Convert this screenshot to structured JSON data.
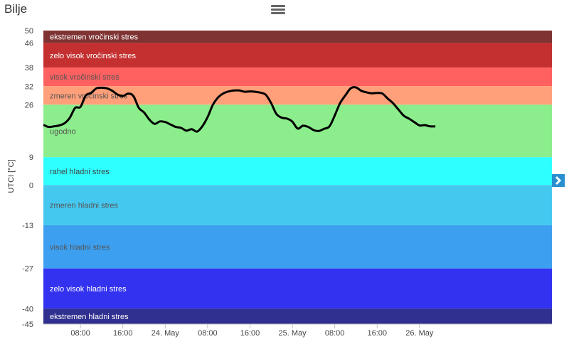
{
  "title": "Bilje",
  "chart_data": {
    "type": "line",
    "ylabel": "UTCI [°C]",
    "xlabel": "",
    "ylim": [
      -45,
      50
    ],
    "xlim": [
      0,
      96
    ],
    "y_ticks": [
      50,
      46,
      38,
      32,
      26,
      9,
      0,
      -13,
      -27,
      -40,
      -45
    ],
    "x_ticks": [
      {
        "x": 7,
        "label": "08:00"
      },
      {
        "x": 15,
        "label": "16:00"
      },
      {
        "x": 23,
        "label": "24. May"
      },
      {
        "x": 31,
        "label": "08:00"
      },
      {
        "x": 39,
        "label": "16:00"
      },
      {
        "x": 47,
        "label": "25. May"
      },
      {
        "x": 55,
        "label": "08:00"
      },
      {
        "x": 63,
        "label": "16:00"
      },
      {
        "x": 71,
        "label": "26. May"
      }
    ],
    "bands": [
      {
        "from": 46,
        "to": 50,
        "label": "ekstremen vročinski stres",
        "color": "#7f3333",
        "text_color": "#ffffff"
      },
      {
        "from": 38,
        "to": 46,
        "label": "zelo visok vročinski stres",
        "color": "#c43030",
        "text_color": "#ffffff"
      },
      {
        "from": 32,
        "to": 38,
        "label": "visok vročinski stres",
        "color": "#ff6060",
        "text_color": "#555555"
      },
      {
        "from": 26,
        "to": 32,
        "label": "zmeren vročinski stres",
        "color": "#ffa07a",
        "text_color": "#555555"
      },
      {
        "from": 9,
        "to": 26,
        "label": "ugodno",
        "color": "#8ced8c",
        "text_color": "#555555"
      },
      {
        "from": 0,
        "to": 9,
        "label": "rahel hladni stres",
        "color": "#2effff",
        "text_color": "#444444"
      },
      {
        "from": -13,
        "to": 0,
        "label": "zmeren hladni stres",
        "color": "#45c8f0",
        "text_color": "#555555"
      },
      {
        "from": -27,
        "to": -13,
        "label": "visok hladni stres",
        "color": "#3c9ff0",
        "text_color": "#555555"
      },
      {
        "from": -40,
        "to": -27,
        "label": "zelo visok hladni stres",
        "color": "#3232f0",
        "text_color": "#ffffff"
      },
      {
        "from": -45,
        "to": -40,
        "label": "ekstremen hladni stres",
        "color": "#303090",
        "text_color": "#ffffff"
      }
    ],
    "series": [
      {
        "color": "#000000",
        "points": [
          [
            0,
            19.5
          ],
          [
            1,
            18.8
          ],
          [
            2,
            19.0
          ],
          [
            3,
            19.3
          ],
          [
            4,
            20.0
          ],
          [
            5,
            21.8
          ],
          [
            6,
            25.0
          ],
          [
            7,
            25.3
          ],
          [
            8,
            29.0
          ],
          [
            9,
            29.8
          ],
          [
            10,
            31.3
          ],
          [
            11,
            31.5
          ],
          [
            12,
            31.3
          ],
          [
            13,
            30.5
          ],
          [
            14,
            29.3
          ],
          [
            15,
            28.8
          ],
          [
            16,
            29.6
          ],
          [
            17,
            28.8
          ],
          [
            18,
            25.0
          ],
          [
            19,
            23.5
          ],
          [
            20,
            21.2
          ],
          [
            21,
            19.8
          ],
          [
            22,
            20.6
          ],
          [
            23,
            20.4
          ],
          [
            24,
            19.6
          ],
          [
            25,
            18.8
          ],
          [
            26,
            18.5
          ],
          [
            27,
            17.6
          ],
          [
            28,
            18.1
          ],
          [
            29,
            17.3
          ],
          [
            30,
            19.0
          ],
          [
            31,
            22.0
          ],
          [
            32,
            26.0
          ],
          [
            33,
            28.4
          ],
          [
            34,
            29.7
          ],
          [
            35,
            30.3
          ],
          [
            36,
            30.6
          ],
          [
            37,
            30.6
          ],
          [
            38,
            30.2
          ],
          [
            39,
            30.3
          ],
          [
            40,
            30.2
          ],
          [
            41,
            29.9
          ],
          [
            42,
            29.2
          ],
          [
            43,
            26.5
          ],
          [
            44,
            23.0
          ],
          [
            45,
            21.8
          ],
          [
            46,
            21.5
          ],
          [
            47,
            20.5
          ],
          [
            48,
            18.3
          ],
          [
            49,
            19.2
          ],
          [
            50,
            18.8
          ],
          [
            51,
            17.8
          ],
          [
            52,
            17.5
          ],
          [
            53,
            18.2
          ],
          [
            54,
            19.0
          ],
          [
            55,
            22.5
          ],
          [
            56,
            26.5
          ],
          [
            57,
            29.0
          ],
          [
            58,
            31.3
          ],
          [
            59,
            31.6
          ],
          [
            60,
            30.5
          ],
          [
            61,
            30.0
          ],
          [
            62,
            29.7
          ],
          [
            63,
            29.8
          ],
          [
            64,
            29.6
          ],
          [
            65,
            28.0
          ],
          [
            66,
            26.5
          ],
          [
            67,
            24.5
          ],
          [
            68,
            22.5
          ],
          [
            69,
            21.5
          ],
          [
            70,
            20.4
          ],
          [
            71,
            19.3
          ],
          [
            72,
            19.4
          ],
          [
            73,
            19.0
          ],
          [
            74,
            19.0
          ]
        ]
      }
    ]
  },
  "controls": {
    "menu_icon": "hamburger-menu-icon",
    "nav_icon": "chevron-right-icon"
  }
}
